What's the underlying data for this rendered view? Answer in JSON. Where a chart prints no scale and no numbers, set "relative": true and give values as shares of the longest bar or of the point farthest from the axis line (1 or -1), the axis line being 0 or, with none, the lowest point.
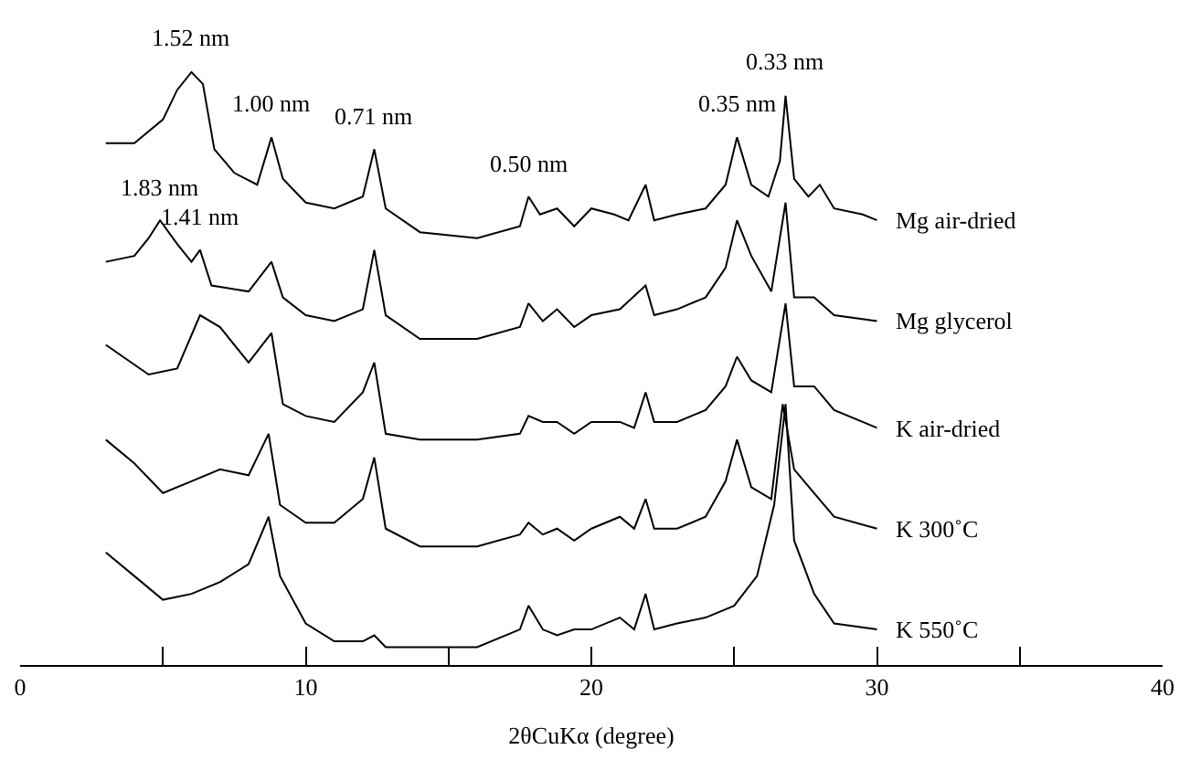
{
  "chart_data": {
    "type": "line",
    "relative": true,
    "xlabel": "2θCuKα (degree)",
    "xlim": [
      0,
      40
    ],
    "xticks": [
      0,
      {
        "value": 5,
        "label": null
      },
      10,
      {
        "value": 15,
        "label": null
      },
      20,
      {
        "value": 25,
        "label": null
      },
      30,
      {
        "value": 35,
        "label": null
      },
      40
    ],
    "legend": false,
    "marker": "none",
    "line_style": "solid",
    "series": [
      {
        "name": "Mg air-dried",
        "color": "#000000",
        "x": [
          3,
          4,
          5,
          5.5,
          6,
          6.4,
          6.8,
          7.5,
          8.3,
          8.8,
          9.2,
          10,
          11,
          12,
          12.4,
          12.8,
          14,
          16,
          17.5,
          17.8,
          18.2,
          18.8,
          19.4,
          20,
          20.8,
          21.3,
          21.9,
          22.2,
          23,
          24,
          24.7,
          25.1,
          25.6,
          26.2,
          26.6,
          26.8,
          27.1,
          27.6,
          28,
          28.5,
          29.5,
          30
        ],
        "values": [
          0.88,
          0.88,
          0.92,
          0.97,
          1.0,
          0.98,
          0.87,
          0.83,
          0.81,
          0.89,
          0.82,
          0.78,
          0.77,
          0.79,
          0.87,
          0.77,
          0.73,
          0.72,
          0.74,
          0.79,
          0.76,
          0.77,
          0.74,
          0.77,
          0.76,
          0.75,
          0.81,
          0.75,
          0.76,
          0.77,
          0.81,
          0.89,
          0.81,
          0.79,
          0.85,
          0.96,
          0.82,
          0.79,
          0.81,
          0.77,
          0.76,
          0.75
        ]
      },
      {
        "name": "Mg glycerol",
        "color": "#000000",
        "x": [
          3,
          4,
          4.5,
          4.9,
          5.5,
          6,
          6.3,
          6.7,
          8,
          8.8,
          9.2,
          10,
          11,
          12,
          12.4,
          12.8,
          14,
          16,
          17.5,
          17.8,
          18.3,
          18.8,
          19.4,
          20,
          21,
          21.9,
          22.2,
          23,
          24,
          24.7,
          25.1,
          25.6,
          26.3,
          26.8,
          27.1,
          27.8,
          28.5,
          30
        ],
        "values": [
          0.68,
          0.69,
          0.72,
          0.75,
          0.71,
          0.68,
          0.7,
          0.64,
          0.63,
          0.68,
          0.62,
          0.59,
          0.58,
          0.6,
          0.7,
          0.59,
          0.55,
          0.55,
          0.57,
          0.61,
          0.58,
          0.6,
          0.57,
          0.59,
          0.6,
          0.64,
          0.59,
          0.6,
          0.62,
          0.67,
          0.75,
          0.69,
          0.63,
          0.78,
          0.62,
          0.62,
          0.59,
          0.58
        ]
      },
      {
        "name": "K air-dried",
        "color": "#000000",
        "x": [
          3,
          4.5,
          5.5,
          6.3,
          7,
          8,
          8.8,
          9.2,
          10,
          11,
          12,
          12.4,
          12.8,
          14,
          16,
          17.5,
          17.8,
          18.3,
          18.8,
          19.4,
          20,
          21,
          21.5,
          21.9,
          22.2,
          23,
          24,
          24.7,
          25.1,
          25.6,
          26.3,
          26.8,
          27.1,
          27.8,
          28.5,
          30
        ],
        "values": [
          0.54,
          0.49,
          0.5,
          0.59,
          0.57,
          0.51,
          0.56,
          0.44,
          0.42,
          0.41,
          0.46,
          0.51,
          0.39,
          0.38,
          0.38,
          0.39,
          0.42,
          0.41,
          0.41,
          0.39,
          0.41,
          0.41,
          0.4,
          0.46,
          0.41,
          0.41,
          0.43,
          0.47,
          0.52,
          0.48,
          0.46,
          0.61,
          0.47,
          0.47,
          0.43,
          0.4
        ]
      },
      {
        "name": "K 300˚C",
        "color": "#000000",
        "x": [
          3,
          4,
          5,
          6,
          7,
          8,
          8.7,
          9.1,
          10,
          11,
          12,
          12.4,
          12.8,
          14,
          16,
          17.5,
          17.8,
          18.3,
          18.8,
          19.4,
          20,
          21,
          21.5,
          21.9,
          22.2,
          23,
          24,
          24.7,
          25.1,
          25.6,
          26.3,
          26.7,
          27.1,
          27.8,
          28.5,
          30
        ],
        "values": [
          0.38,
          0.34,
          0.29,
          0.31,
          0.33,
          0.32,
          0.39,
          0.27,
          0.24,
          0.24,
          0.28,
          0.35,
          0.23,
          0.2,
          0.2,
          0.22,
          0.24,
          0.22,
          0.23,
          0.21,
          0.23,
          0.25,
          0.23,
          0.28,
          0.23,
          0.23,
          0.25,
          0.31,
          0.38,
          0.3,
          0.28,
          0.44,
          0.33,
          0.29,
          0.25,
          0.23
        ]
      },
      {
        "name": "K 550˚C",
        "color": "#000000",
        "x": [
          3,
          4,
          5,
          6,
          7,
          8,
          8.7,
          9.1,
          10,
          11,
          12,
          12.4,
          12.8,
          14,
          16,
          17.5,
          17.8,
          18.3,
          18.8,
          19.4,
          20,
          21,
          21.5,
          21.9,
          22.2,
          23,
          24,
          25,
          25.8,
          26.4,
          26.8,
          27.1,
          27.8,
          28.5,
          30
        ],
        "values": [
          0.19,
          0.15,
          0.11,
          0.12,
          0.14,
          0.17,
          0.25,
          0.15,
          0.07,
          0.04,
          0.04,
          0.05,
          0.03,
          0.03,
          0.03,
          0.06,
          0.1,
          0.06,
          0.05,
          0.06,
          0.06,
          0.08,
          0.06,
          0.12,
          0.06,
          0.07,
          0.08,
          0.1,
          0.15,
          0.27,
          0.44,
          0.21,
          0.12,
          0.07,
          0.06
        ]
      }
    ],
    "annotations": [
      {
        "text": "1.52 nm",
        "x": 6,
        "y": 1.0
      },
      {
        "text": "1.00 nm",
        "x": 8.8,
        "y": 0.89
      },
      {
        "text": "0.71 nm",
        "x": 12.4,
        "y": 0.87
      },
      {
        "text": "0.50 nm",
        "x": 17.8,
        "y": 0.79
      },
      {
        "text": "0.35 nm",
        "x": 25.1,
        "y": 0.89
      },
      {
        "text": "0.33 nm",
        "x": 26.8,
        "y": 0.96
      },
      {
        "text": "1.83 nm",
        "x": 4.9,
        "y": 0.75
      },
      {
        "text": "1.41 nm",
        "x": 6.3,
        "y": 0.7
      }
    ]
  }
}
